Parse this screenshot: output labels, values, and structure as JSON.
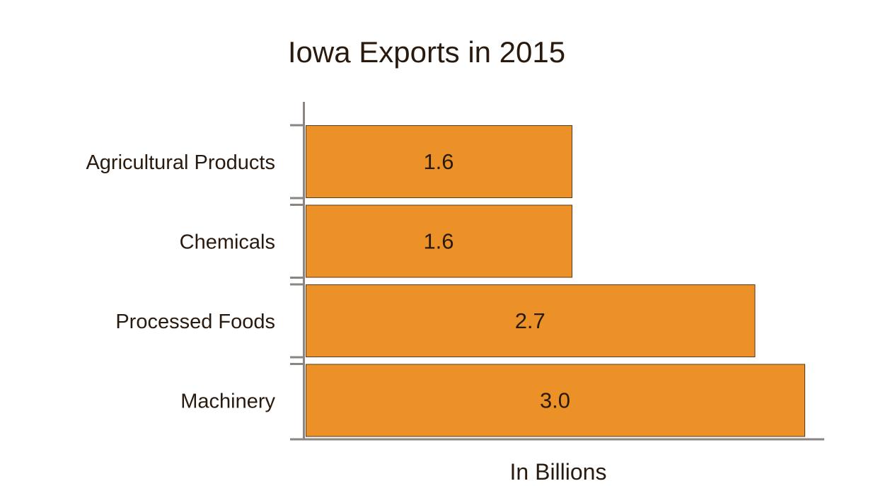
{
  "chart_data": {
    "type": "bar",
    "orientation": "horizontal",
    "title": "Iowa Exports in 2015",
    "xlabel": "In Billions",
    "ylabel": "",
    "categories": [
      "Agricultural Products",
      "Chemicals",
      "Processed Foods",
      "Machinery"
    ],
    "values": [
      1.6,
      1.6,
      2.7,
      3.0
    ],
    "data_labels": [
      "1.6",
      "1.6",
      "2.7",
      "3.0"
    ],
    "xlim": [
      0,
      3.1
    ],
    "grid": false,
    "colors": {
      "bar": "#EB9127",
      "bar_stroke": "#5A3A1E",
      "axis": "#8A8580",
      "text": "#2A1A0E"
    }
  }
}
